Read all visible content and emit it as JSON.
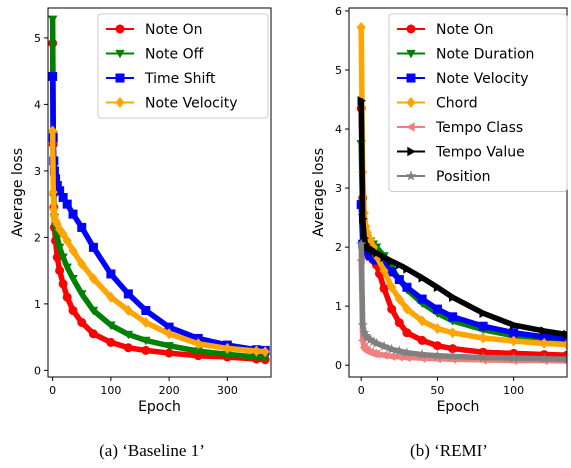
{
  "chart_data": [
    {
      "type": "line",
      "caption": "(a) ‘Baseline 1’",
      "xlabel": "Epoch",
      "ylabel": "Average loss",
      "xlim": [
        -8,
        375
      ],
      "ylim": [
        -0.1,
        5.45
      ],
      "xticks": [
        0,
        100,
        200,
        300
      ],
      "yticks": [
        0,
        1,
        2,
        3,
        4,
        5
      ],
      "legend": "top-right",
      "series": [
        {
          "name": "Note On",
          "color": "#ff0000",
          "marker": "circle",
          "x": [
            0,
            1,
            2,
            3,
            5,
            8,
            12,
            18,
            25,
            35,
            50,
            70,
            100,
            130,
            160,
            200,
            250,
            300,
            350,
            365
          ],
          "y": [
            4.92,
            3.4,
            2.45,
            2.15,
            1.95,
            1.7,
            1.5,
            1.3,
            1.1,
            0.9,
            0.72,
            0.55,
            0.42,
            0.34,
            0.3,
            0.26,
            0.22,
            0.2,
            0.17,
            0.16
          ]
        },
        {
          "name": "Note Off",
          "color": "#008000",
          "marker": "triangle-down",
          "x": [
            0,
            1,
            2,
            3,
            5,
            8,
            12,
            18,
            25,
            35,
            50,
            70,
            100,
            130,
            160,
            200,
            250,
            300,
            350,
            365
          ],
          "y": [
            5.28,
            3.55,
            2.6,
            2.3,
            2.15,
            2.0,
            1.85,
            1.7,
            1.55,
            1.38,
            1.15,
            0.9,
            0.68,
            0.54,
            0.45,
            0.37,
            0.29,
            0.24,
            0.2,
            0.19
          ]
        },
        {
          "name": "Time Shift",
          "color": "#0000ff",
          "marker": "square",
          "x": [
            0,
            1,
            2,
            3,
            5,
            8,
            12,
            18,
            25,
            35,
            50,
            70,
            100,
            130,
            160,
            200,
            250,
            300,
            350,
            365
          ],
          "y": [
            4.42,
            3.5,
            3.15,
            3.0,
            2.88,
            2.78,
            2.7,
            2.6,
            2.5,
            2.35,
            2.15,
            1.85,
            1.45,
            1.15,
            0.9,
            0.65,
            0.48,
            0.38,
            0.31,
            0.3
          ]
        },
        {
          "name": "Note Velocity",
          "color": "#ffa500",
          "marker": "diamond",
          "x": [
            0,
            1,
            2,
            3,
            5,
            8,
            12,
            18,
            25,
            35,
            50,
            70,
            100,
            130,
            160,
            200,
            250,
            300,
            350,
            365
          ],
          "y": [
            3.6,
            2.68,
            2.42,
            2.32,
            2.25,
            2.2,
            2.12,
            2.05,
            1.95,
            1.8,
            1.6,
            1.38,
            1.1,
            0.9,
            0.72,
            0.55,
            0.4,
            0.33,
            0.29,
            0.28
          ]
        }
      ]
    },
    {
      "type": "line",
      "caption": "(b) ‘REMI’",
      "xlabel": "Epoch",
      "ylabel": "Average loss",
      "xlim": [
        -8,
        135
      ],
      "ylim": [
        -0.2,
        6.05
      ],
      "xticks": [
        0,
        50,
        100
      ],
      "yticks": [
        0,
        1,
        2,
        3,
        4,
        5,
        6
      ],
      "legend": "top-right",
      "series": [
        {
          "name": "Note On",
          "color": "#ff0000",
          "marker": "circle",
          "x": [
            0,
            1,
            2,
            3,
            4,
            6,
            8,
            10,
            12,
            15,
            20,
            25,
            30,
            40,
            50,
            60,
            80,
            100,
            120,
            135
          ],
          "y": [
            4.35,
            2.83,
            2.3,
            2.05,
            1.95,
            1.85,
            1.78,
            1.7,
            1.55,
            1.3,
            0.95,
            0.72,
            0.55,
            0.42,
            0.33,
            0.28,
            0.22,
            0.2,
            0.18,
            0.17
          ]
        },
        {
          "name": "Note Duration",
          "color": "#008000",
          "marker": "triangle-down",
          "x": [
            0,
            1,
            2,
            3,
            4,
            6,
            8,
            10,
            15,
            20,
            25,
            30,
            40,
            50,
            60,
            80,
            100,
            120,
            135
          ],
          "y": [
            3.75,
            2.5,
            2.3,
            2.2,
            2.15,
            2.1,
            2.05,
            2.0,
            1.85,
            1.65,
            1.45,
            1.28,
            1.05,
            0.88,
            0.75,
            0.6,
            0.5,
            0.44,
            0.4
          ]
        },
        {
          "name": "Note Velocity",
          "color": "#0000ff",
          "marker": "square",
          "x": [
            0,
            1,
            2,
            3,
            4,
            6,
            8,
            10,
            15,
            20,
            25,
            30,
            40,
            50,
            60,
            80,
            100,
            120,
            135
          ],
          "y": [
            2.72,
            2.05,
            1.95,
            1.9,
            1.88,
            1.85,
            1.82,
            1.78,
            1.7,
            1.58,
            1.45,
            1.32,
            1.12,
            0.95,
            0.82,
            0.66,
            0.55,
            0.48,
            0.45
          ]
        },
        {
          "name": "Chord",
          "color": "#ffa500",
          "marker": "diamond",
          "x": [
            0,
            1,
            2,
            3,
            4,
            6,
            8,
            10,
            15,
            20,
            25,
            30,
            40,
            50,
            60,
            80,
            100,
            120,
            135
          ],
          "y": [
            5.72,
            3.27,
            2.58,
            2.35,
            2.25,
            2.12,
            2.0,
            1.85,
            1.6,
            1.32,
            1.12,
            0.95,
            0.75,
            0.62,
            0.55,
            0.46,
            0.41,
            0.37,
            0.35
          ]
        },
        {
          "name": "Tempo Class",
          "color": "#f08080",
          "marker": "triangle-left",
          "x": [
            0,
            1,
            2,
            3,
            4,
            6,
            8,
            10,
            15,
            20,
            25,
            30,
            40,
            50,
            60,
            80,
            100,
            120,
            135
          ],
          "y": [
            1.78,
            0.42,
            0.3,
            0.26,
            0.24,
            0.22,
            0.2,
            0.19,
            0.17,
            0.15,
            0.14,
            0.13,
            0.12,
            0.11,
            0.1,
            0.09,
            0.08,
            0.08,
            0.07
          ]
        },
        {
          "name": "Tempo Value",
          "color": "#000000",
          "marker": "triangle-right",
          "x": [
            0,
            1,
            2,
            3,
            4,
            6,
            8,
            10,
            15,
            20,
            25,
            30,
            40,
            50,
            60,
            80,
            100,
            120,
            135
          ],
          "y": [
            4.48,
            2.48,
            2.15,
            2.05,
            2.0,
            1.97,
            1.93,
            1.9,
            1.83,
            1.76,
            1.7,
            1.63,
            1.48,
            1.32,
            1.15,
            0.88,
            0.68,
            0.58,
            0.52
          ]
        },
        {
          "name": "Position",
          "color": "#808080",
          "marker": "star",
          "x": [
            0,
            1,
            2,
            3,
            4,
            6,
            8,
            10,
            15,
            20,
            25,
            30,
            40,
            50,
            60,
            80,
            100,
            120,
            135
          ],
          "y": [
            2.05,
            0.68,
            0.55,
            0.5,
            0.47,
            0.43,
            0.4,
            0.37,
            0.32,
            0.27,
            0.24,
            0.21,
            0.18,
            0.16,
            0.15,
            0.13,
            0.12,
            0.11,
            0.1
          ]
        }
      ]
    }
  ]
}
